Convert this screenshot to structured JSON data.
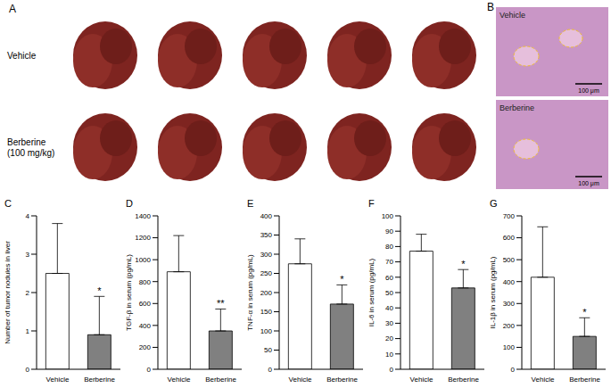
{
  "panels": {
    "A": {
      "letter": "A",
      "rows": [
        "Vehicle",
        "Berberine (100 mg/kg)"
      ]
    },
    "B": {
      "letter": "B",
      "images": [
        {
          "label": "Vehicle",
          "scale_bar": "100 μm"
        },
        {
          "label": "Berberine",
          "scale_bar": "100 μm"
        }
      ]
    }
  },
  "chart_data": [
    {
      "panel": "C",
      "type": "bar",
      "categories": [
        "Vehicle",
        "Berberine"
      ],
      "values": [
        2.5,
        0.9
      ],
      "errors": [
        1.3,
        1.0
      ],
      "colors": [
        "#ffffff",
        "#808080"
      ],
      "y_label": "Number of tumor nodules in liver",
      "ylim": [
        0,
        4
      ],
      "yticks": [
        0,
        1,
        2,
        3,
        4
      ],
      "annotations": [
        {
          "text": "*",
          "category": "Berberine"
        }
      ]
    },
    {
      "panel": "D",
      "type": "bar",
      "categories": [
        "Vehicle",
        "Berberine"
      ],
      "values": [
        890,
        350
      ],
      "errors": [
        330,
        200
      ],
      "colors": [
        "#ffffff",
        "#808080"
      ],
      "y_label": "TGF-β in serum (pg/mL)",
      "ylim": [
        0,
        1400
      ],
      "yticks": [
        0,
        200,
        400,
        600,
        800,
        1000,
        1200,
        1400
      ],
      "annotations": [
        {
          "text": "**",
          "category": "Berberine"
        }
      ]
    },
    {
      "panel": "E",
      "type": "bar",
      "categories": [
        "Vehicle",
        "Berberine"
      ],
      "values": [
        275,
        170
      ],
      "errors": [
        65,
        50
      ],
      "colors": [
        "#ffffff",
        "#808080"
      ],
      "y_label": "TNF-α in serum (pg/mL)",
      "ylim": [
        0,
        400
      ],
      "yticks": [
        0,
        50,
        100,
        150,
        200,
        250,
        300,
        350,
        400
      ],
      "annotations": [
        {
          "text": "*",
          "category": "Berberine"
        }
      ]
    },
    {
      "panel": "F",
      "type": "bar",
      "categories": [
        "Vehicle",
        "Berberine"
      ],
      "values": [
        77,
        53
      ],
      "errors": [
        11,
        12
      ],
      "colors": [
        "#ffffff",
        "#808080"
      ],
      "y_label": "IL-6 in serum (pg/mL)",
      "ylim": [
        0,
        100
      ],
      "yticks": [
        0,
        10,
        20,
        30,
        40,
        50,
        60,
        70,
        80,
        90,
        100
      ],
      "annotations": [
        {
          "text": "*",
          "category": "Berberine"
        }
      ]
    },
    {
      "panel": "G",
      "type": "bar",
      "categories": [
        "Vehicle",
        "Berberine"
      ],
      "values": [
        420,
        150
      ],
      "errors": [
        230,
        85
      ],
      "colors": [
        "#ffffff",
        "#808080"
      ],
      "y_label": "IL-1β in serum (pg/mL)",
      "ylim": [
        0,
        700
      ],
      "yticks": [
        0,
        100,
        200,
        300,
        400,
        500,
        600,
        700
      ],
      "annotations": [
        {
          "text": "*",
          "category": "Berberine"
        }
      ]
    }
  ]
}
